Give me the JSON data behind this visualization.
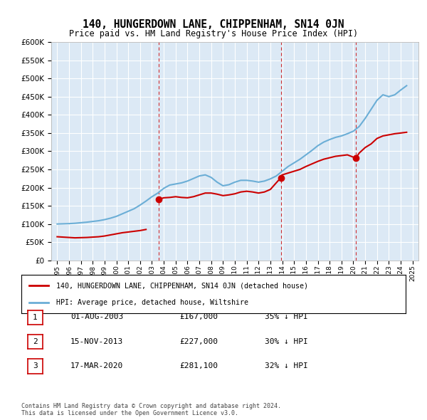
{
  "title": "140, HUNGERDOWN LANE, CHIPPENHAM, SN14 0JN",
  "subtitle": "Price paid vs. HM Land Registry's House Price Index (HPI)",
  "hpi_years": [
    1995,
    1995.5,
    1996,
    1996.5,
    1997,
    1997.5,
    1998,
    1998.5,
    1999,
    1999.5,
    2000,
    2000.5,
    2001,
    2001.5,
    2002,
    2002.5,
    2003,
    2003.5,
    2004,
    2004.5,
    2005,
    2005.5,
    2006,
    2006.5,
    2007,
    2007.5,
    2008,
    2008.5,
    2009,
    2009.5,
    2010,
    2010.5,
    2011,
    2011.5,
    2012,
    2012.5,
    2013,
    2013.5,
    2014,
    2014.5,
    2015,
    2015.5,
    2016,
    2016.5,
    2017,
    2017.5,
    2018,
    2018.5,
    2019,
    2019.5,
    2020,
    2020.5,
    2021,
    2021.5,
    2022,
    2022.5,
    2023,
    2023.5,
    2024,
    2024.5
  ],
  "hpi_values": [
    100000,
    100500,
    101000,
    102000,
    103500,
    105000,
    107000,
    109000,
    112000,
    116000,
    121000,
    128000,
    135000,
    142000,
    152000,
    163000,
    175000,
    185000,
    198000,
    207000,
    210000,
    213000,
    218000,
    225000,
    232000,
    235000,
    228000,
    215000,
    205000,
    208000,
    215000,
    220000,
    220000,
    218000,
    215000,
    218000,
    224000,
    232000,
    245000,
    258000,
    268000,
    278000,
    290000,
    302000,
    315000,
    325000,
    332000,
    338000,
    342000,
    348000,
    355000,
    368000,
    390000,
    415000,
    440000,
    455000,
    450000,
    455000,
    468000,
    480000
  ],
  "price_years": [
    1995,
    1995.5,
    1996,
    1996.5,
    1997,
    1997.5,
    1998,
    1998.5,
    1999,
    1999.5,
    2000,
    2000.5,
    2001,
    2001.5,
    2002,
    2002.5,
    2003.583,
    2003.8,
    2004,
    2004.5,
    2005,
    2005.5,
    2006,
    2006.5,
    2007,
    2007.5,
    2008,
    2008.5,
    2009,
    2009.5,
    2010,
    2010.5,
    2011,
    2011.5,
    2012,
    2012.5,
    2013,
    2013.875,
    2014,
    2014.5,
    2015,
    2015.5,
    2016,
    2016.5,
    2017,
    2017.5,
    2018,
    2018.5,
    2019,
    2019.5,
    2020.208,
    2020.5,
    2021,
    2021.5,
    2022,
    2022.5,
    2023,
    2023.5,
    2024,
    2024.5
  ],
  "price_values": [
    65000,
    64000,
    63000,
    62000,
    62500,
    63000,
    64000,
    65000,
    67000,
    70000,
    73000,
    76000,
    78000,
    80000,
    82000,
    85000,
    167000,
    170000,
    172000,
    173000,
    175000,
    173000,
    172000,
    175000,
    180000,
    185000,
    185000,
    182000,
    178000,
    180000,
    183000,
    188000,
    190000,
    188000,
    185000,
    188000,
    195000,
    227000,
    235000,
    240000,
    245000,
    250000,
    258000,
    265000,
    272000,
    278000,
    282000,
    286000,
    288000,
    290000,
    281100,
    295000,
    310000,
    320000,
    335000,
    342000,
    345000,
    348000,
    350000,
    352000
  ],
  "sale_points": [
    {
      "year": 2003.583,
      "value": 167000,
      "label": "1"
    },
    {
      "year": 2013.875,
      "value": 227000,
      "label": "2"
    },
    {
      "year": 2020.208,
      "value": 281100,
      "label": "3"
    }
  ],
  "vline_years": [
    2003.583,
    2013.875,
    2020.208
  ],
  "hpi_color": "#6baed6",
  "price_color": "#cc0000",
  "vline_color": "#cc0000",
  "bg_color": "#dce9f5",
  "plot_bg": "#dce9f5",
  "ylim": [
    0,
    600000
  ],
  "yticks": [
    0,
    50000,
    100000,
    150000,
    200000,
    250000,
    300000,
    350000,
    400000,
    450000,
    500000,
    550000,
    600000
  ],
  "xlim": [
    1994.5,
    2025.5
  ],
  "legend_entries": [
    "140, HUNGERDOWN LANE, CHIPPENHAM, SN14 0JN (detached house)",
    "HPI: Average price, detached house, Wiltshire"
  ],
  "table_rows": [
    {
      "num": "1",
      "date": "01-AUG-2003",
      "price": "£167,000",
      "pct": "35% ↓ HPI"
    },
    {
      "num": "2",
      "date": "15-NOV-2013",
      "price": "£227,000",
      "pct": "30% ↓ HPI"
    },
    {
      "num": "3",
      "date": "17-MAR-2020",
      "price": "£281,100",
      "pct": "32% ↓ HPI"
    }
  ],
  "footnote": "Contains HM Land Registry data © Crown copyright and database right 2024.\nThis data is licensed under the Open Government Licence v3.0."
}
